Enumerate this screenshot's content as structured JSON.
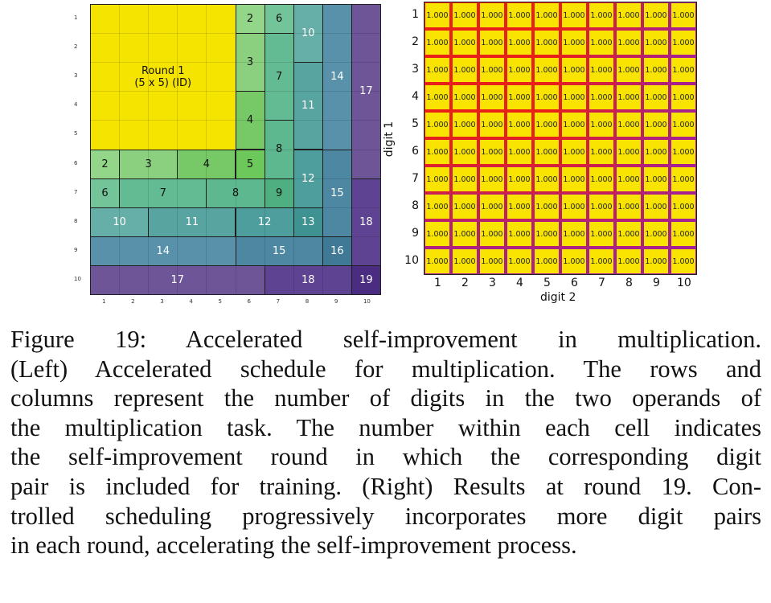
{
  "left_chart": {
    "x_ticks": [
      "1",
      "2",
      "3",
      "4",
      "5",
      "6",
      "7",
      "8",
      "9",
      "10"
    ],
    "y_ticks": [
      "1",
      "2",
      "3",
      "4",
      "5",
      "6",
      "7",
      "8",
      "9",
      "10"
    ],
    "round1_label": "Round 1\n(5 x 5) (ID)",
    "blocks": [
      {
        "round": 1,
        "r": [
          1,
          5
        ],
        "c": [
          1,
          5
        ],
        "label": "round1"
      },
      {
        "round": 2,
        "r": [
          1,
          1
        ],
        "c": [
          6,
          6
        ]
      },
      {
        "round": 2,
        "r": [
          6,
          6
        ],
        "c": [
          1,
          1
        ]
      },
      {
        "round": 3,
        "r": [
          2,
          3
        ],
        "c": [
          6,
          6
        ]
      },
      {
        "round": 3,
        "r": [
          6,
          6
        ],
        "c": [
          2,
          3
        ]
      },
      {
        "round": 4,
        "r": [
          4,
          5
        ],
        "c": [
          6,
          6
        ]
      },
      {
        "round": 4,
        "r": [
          6,
          6
        ],
        "c": [
          4,
          5
        ]
      },
      {
        "round": 5,
        "r": [
          6,
          6
        ],
        "c": [
          6,
          6
        ]
      },
      {
        "round": 6,
        "r": [
          1,
          1
        ],
        "c": [
          7,
          7
        ]
      },
      {
        "round": 6,
        "r": [
          7,
          7
        ],
        "c": [
          1,
          1
        ]
      },
      {
        "round": 7,
        "r": [
          2,
          4
        ],
        "c": [
          7,
          7
        ]
      },
      {
        "round": 7,
        "r": [
          7,
          7
        ],
        "c": [
          2,
          4
        ]
      },
      {
        "round": 8,
        "r": [
          5,
          6
        ],
        "c": [
          7,
          7
        ]
      },
      {
        "round": 8,
        "r": [
          7,
          7
        ],
        "c": [
          5,
          6
        ]
      },
      {
        "round": 9,
        "r": [
          7,
          7
        ],
        "c": [
          7,
          7
        ]
      },
      {
        "round": 10,
        "r": [
          1,
          2
        ],
        "c": [
          8,
          8
        ]
      },
      {
        "round": 10,
        "r": [
          8,
          8
        ],
        "c": [
          1,
          2
        ]
      },
      {
        "round": 11,
        "r": [
          3,
          5
        ],
        "c": [
          8,
          8
        ]
      },
      {
        "round": 11,
        "r": [
          8,
          8
        ],
        "c": [
          3,
          5
        ]
      },
      {
        "round": 12,
        "r": [
          6,
          7
        ],
        "c": [
          8,
          8
        ]
      },
      {
        "round": 12,
        "r": [
          8,
          8
        ],
        "c": [
          6,
          7
        ]
      },
      {
        "round": 13,
        "r": [
          8,
          8
        ],
        "c": [
          8,
          8
        ]
      },
      {
        "round": 14,
        "r": [
          1,
          5
        ],
        "c": [
          9,
          9
        ]
      },
      {
        "round": 14,
        "r": [
          9,
          9
        ],
        "c": [
          1,
          5
        ]
      },
      {
        "round": 15,
        "r": [
          6,
          8
        ],
        "c": [
          9,
          9
        ]
      },
      {
        "round": 15,
        "r": [
          9,
          9
        ],
        "c": [
          6,
          8
        ]
      },
      {
        "round": 16,
        "r": [
          9,
          9
        ],
        "c": [
          9,
          9
        ]
      },
      {
        "round": 17,
        "r": [
          1,
          6
        ],
        "c": [
          10,
          10
        ]
      },
      {
        "round": 17,
        "r": [
          10,
          10
        ],
        "c": [
          1,
          6
        ]
      },
      {
        "round": 18,
        "r": [
          7,
          9
        ],
        "c": [
          10,
          10
        ]
      },
      {
        "round": 18,
        "r": [
          10,
          10
        ],
        "c": [
          7,
          9
        ]
      },
      {
        "round": 19,
        "r": [
          10,
          10
        ],
        "c": [
          10,
          10
        ]
      }
    ],
    "round_colors": [
      "#f5e300",
      "#93d68a",
      "#8bd07f",
      "#76c966",
      "#6cc85a",
      "#74c49a",
      "#63bb93",
      "#5db78f",
      "#4faf80",
      "#66afa8",
      "#57a4a1",
      "#4d9e9c",
      "#3e9292",
      "#5891a9",
      "#4d87a1",
      "#3f7996",
      "#6d5598",
      "#5d4391",
      "#4a2c80"
    ]
  },
  "chart_data": {
    "type": "heatmap",
    "title": "",
    "xlabel": "digit 2",
    "ylabel": "digit 1",
    "x_ticks": [
      "1",
      "2",
      "3",
      "4",
      "5",
      "6",
      "7",
      "8",
      "9",
      "10"
    ],
    "y_ticks": [
      "1",
      "2",
      "3",
      "4",
      "5",
      "6",
      "7",
      "8",
      "9",
      "10"
    ],
    "values": [
      [
        "1.000",
        "1.000",
        "1.000",
        "1.000",
        "1.000",
        "1.000",
        "1.000",
        "1.000",
        "1.000",
        "1.000"
      ],
      [
        "1.000",
        "1.000",
        "1.000",
        "1.000",
        "1.000",
        "1.000",
        "1.000",
        "1.000",
        "1.000",
        "1.000"
      ],
      [
        "1.000",
        "1.000",
        "1.000",
        "1.000",
        "1.000",
        "1.000",
        "1.000",
        "1.000",
        "1.000",
        "1.000"
      ],
      [
        "1.000",
        "1.000",
        "1.000",
        "1.000",
        "1.000",
        "1.000",
        "1.000",
        "1.000",
        "1.000",
        "1.000"
      ],
      [
        "1.000",
        "1.000",
        "1.000",
        "1.000",
        "1.000",
        "1.000",
        "1.000",
        "1.000",
        "1.000",
        "1.000"
      ],
      [
        "1.000",
        "1.000",
        "1.000",
        "1.000",
        "1.000",
        "1.000",
        "1.000",
        "1.000",
        "1.000",
        "1.000"
      ],
      [
        "1.000",
        "1.000",
        "1.000",
        "1.000",
        "1.000",
        "1.000",
        "1.000",
        "1.000",
        "1.000",
        "1.000"
      ],
      [
        "1.000",
        "1.000",
        "1.000",
        "1.000",
        "1.000",
        "1.000",
        "1.000",
        "1.000",
        "1.000",
        "1.000"
      ],
      [
        "1.000",
        "1.000",
        "1.000",
        "1.000",
        "1.000",
        "1.000",
        "1.000",
        "1.000",
        "1.000",
        "1.000"
      ],
      [
        "1.000",
        "1.000",
        "1.000",
        "1.000",
        "1.000",
        "1.000",
        "1.000",
        "1.000",
        "1.000",
        "1.000"
      ]
    ],
    "cell_color": "#f8e400",
    "border_color_early": "#e8201a",
    "border_color_late": "#a0209a"
  },
  "caption": {
    "lines": [
      "Figure 19: Accelerated self-improvement in multiplication.",
      "(Left) Accelerated schedule for multiplication. The rows and",
      "columns represent the number of digits in the two operands of",
      "the multiplication task. The number within each cell indicates",
      "the self-improvement round in which the corresponding digit",
      "pair is included for training. (Right) Results at round 19. Con-",
      "trolled scheduling progressively incorporates more digit pairs",
      "in each round, accelerating the self-improvement process."
    ]
  }
}
